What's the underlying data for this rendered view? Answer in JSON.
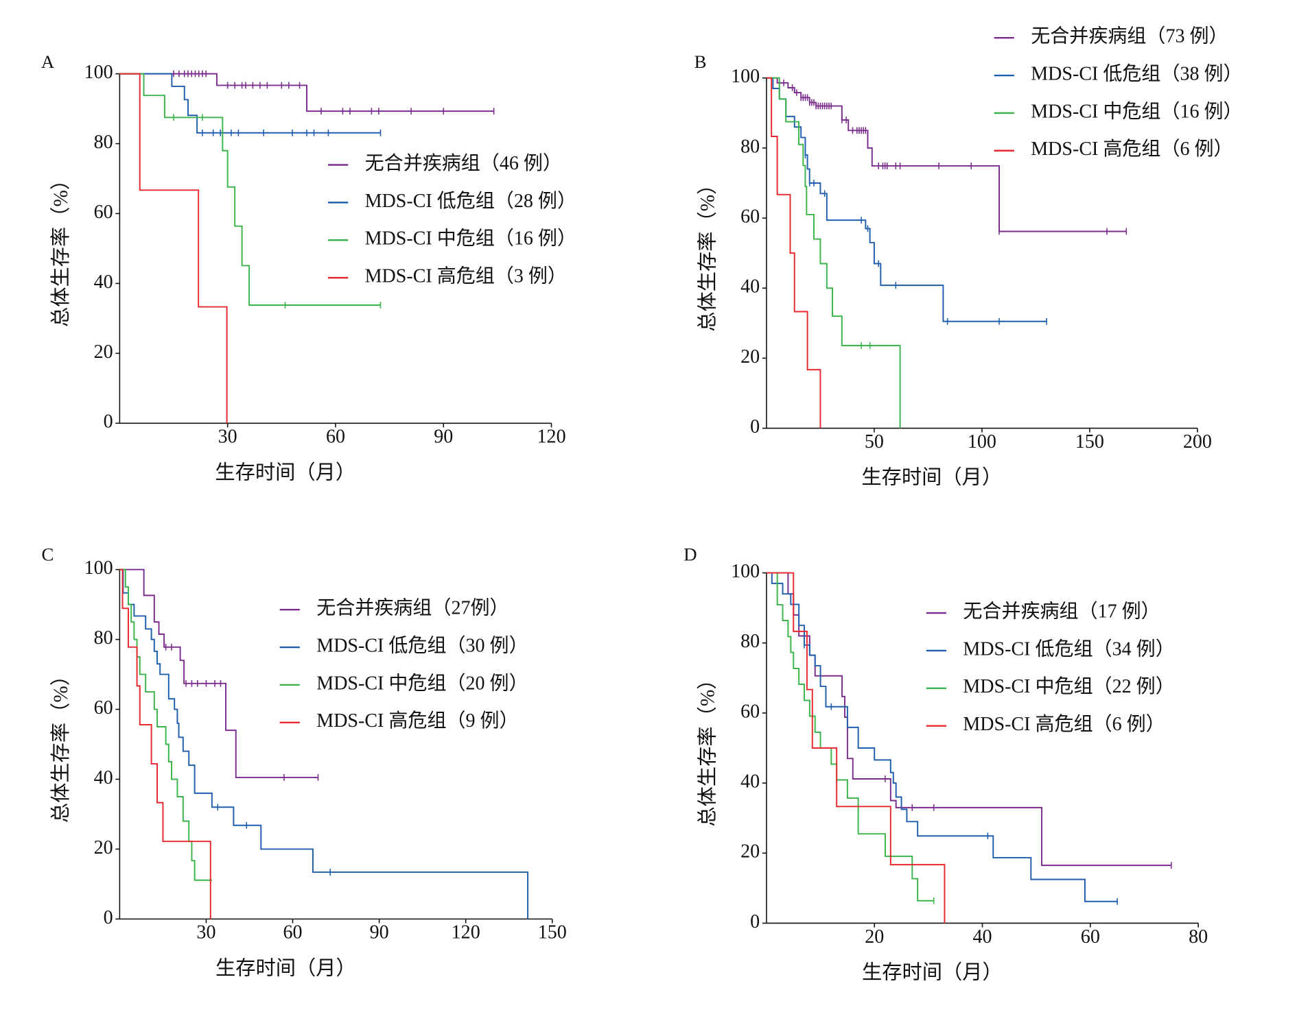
{
  "chart_data": [
    {
      "type": "step",
      "label": "A",
      "x_label": "生存时间（月）",
      "y_label": "总体生存率（%）",
      "xlim": [
        0,
        120
      ],
      "xticks": [
        30,
        60,
        90,
        120
      ],
      "ylim": [
        0,
        100
      ],
      "yticks": [
        0,
        20,
        40,
        60,
        80,
        100
      ],
      "legend": "right",
      "series": [
        {
          "name": "无合并疾病组（46 例）",
          "color": "#7b2d8e",
          "x": [
            0,
            27,
            52,
            104
          ],
          "values": [
            100,
            96.7,
            89.3,
            89.3
          ],
          "censored": [
            15,
            16.5,
            18,
            19,
            20,
            21,
            22,
            23,
            24,
            30,
            32,
            34,
            35,
            37,
            39,
            41,
            45,
            47,
            50,
            56,
            62,
            64,
            70,
            72,
            81,
            90,
            104
          ]
        },
        {
          "name": "MDS-CI 低危组（28 例）",
          "color": "#1f5fae",
          "x": [
            0,
            14.5,
            18,
            19,
            21.5,
            72.5
          ],
          "values": [
            100,
            96.4,
            92.6,
            88.1,
            83.1,
            83.1
          ],
          "censored": [
            23,
            26,
            28,
            31,
            33,
            40,
            48,
            52,
            54,
            58,
            72.5
          ]
        },
        {
          "name": "MDS-CI 中危组（16 例）",
          "color": "#3cb44b",
          "x": [
            0,
            6.7,
            12.5,
            28.6,
            30,
            32,
            34,
            36,
            72.5
          ],
          "values": [
            100,
            93.8,
            87.5,
            78,
            67.6,
            56.4,
            45.1,
            33.8,
            33.8
          ],
          "censored": [
            15,
            23,
            46,
            72.5
          ]
        },
        {
          "name": "MDS-CI 高危组（3 例）",
          "color": "#e8282d",
          "x": [
            0,
            5.6,
            21.9,
            29.8
          ],
          "values": [
            100,
            66.7,
            33.3,
            0
          ],
          "censored": []
        }
      ]
    },
    {
      "type": "step",
      "label": "B",
      "x_label": "生存时间（月）",
      "y_label": "总体生存率（%）",
      "xlim": [
        0,
        200
      ],
      "xticks": [
        50,
        100,
        150,
        200
      ],
      "ylim": [
        0,
        100
      ],
      "yticks": [
        0,
        20,
        40,
        60,
        80,
        100
      ],
      "legend": "top",
      "series": [
        {
          "name": "无合并疾病组（73 例）",
          "color": "#7b2d8e",
          "x": [
            0,
            5,
            10,
            13,
            16,
            20,
            23,
            35,
            38,
            47,
            49,
            108,
            167
          ],
          "values": [
            100,
            98.6,
            97.2,
            95.8,
            94.4,
            93,
            92,
            88,
            85,
            80,
            74.9,
            56.2,
            56.2
          ],
          "censored": [
            8,
            12,
            14,
            16,
            17,
            18,
            19,
            20,
            21,
            22,
            23,
            24,
            25,
            26,
            27,
            28,
            29,
            30,
            35,
            37,
            40,
            42,
            43,
            44,
            45,
            46,
            52,
            54,
            55,
            56,
            60,
            62,
            80,
            95,
            108,
            158,
            167
          ]
        },
        {
          "name": "MDS-CI 低危组（38 例）",
          "color": "#1f5fae",
          "x": [
            0,
            3,
            6,
            9,
            13,
            16,
            18,
            19,
            20,
            25,
            28,
            46,
            48,
            50,
            53,
            82,
            130
          ],
          "values": [
            100,
            97,
            94,
            89,
            86,
            83,
            78,
            74,
            70,
            67,
            59.4,
            57,
            53,
            47,
            40.8,
            30.5,
            30.5
          ],
          "censored": [
            15,
            18,
            20,
            22,
            27,
            44,
            47,
            52,
            60,
            84,
            108,
            130
          ]
        },
        {
          "name": "MDS-CI 中危组（16 例）",
          "color": "#3cb44b",
          "x": [
            0,
            6,
            9,
            15,
            17,
            18,
            18.6,
            22,
            25,
            28,
            30.6,
            35,
            62
          ],
          "values": [
            100,
            94,
            87.5,
            81,
            75,
            69,
            61,
            54,
            47,
            40,
            32,
            23.6,
            0
          ],
          "censored": [
            44,
            48
          ]
        },
        {
          "name": "MDS-CI 高危组（6 例）",
          "color": "#e8282d",
          "x": [
            0,
            2.3,
            5,
            11,
            13,
            19,
            25
          ],
          "values": [
            100,
            83.3,
            66.7,
            50,
            33.3,
            16.7,
            0
          ],
          "censored": []
        }
      ]
    },
    {
      "type": "step",
      "label": "C",
      "x_label": "生存时间（月）",
      "y_label": "总体生存率（%）",
      "xlim": [
        0,
        150
      ],
      "xticks": [
        30,
        60,
        90,
        120,
        150
      ],
      "ylim": [
        0,
        100
      ],
      "yticks": [
        0,
        20,
        40,
        60,
        80,
        100
      ],
      "legend": "upper right",
      "series": [
        {
          "name": "无合并疾病组（27例）",
          "color": "#7b2d8e",
          "x": [
            0,
            8.4,
            12,
            13.6,
            15.4,
            21,
            22.3,
            36.8,
            40.3,
            68.8
          ],
          "values": [
            100,
            92.6,
            85,
            81.5,
            77.8,
            74,
            67.4,
            54,
            40.5,
            40.5
          ],
          "censored": [
            16,
            18,
            23,
            25,
            27,
            30,
            33,
            35,
            57,
            68.8
          ]
        },
        {
          "name": "MDS-CI 低危组（30 例）",
          "color": "#1f5fae",
          "x": [
            0,
            1.2,
            3,
            5,
            9,
            11,
            12,
            13,
            14,
            17,
            19,
            20,
            20.5,
            22,
            24,
            26,
            32,
            39.5,
            49,
            67,
            141.5
          ],
          "values": [
            100,
            93.3,
            90,
            86.7,
            83,
            80,
            76.6,
            73,
            70,
            63,
            60,
            56,
            52,
            48,
            44,
            36,
            32,
            26.8,
            20,
            13.4,
            0
          ],
          "censored": [
            34,
            44,
            73
          ]
        },
        {
          "name": "MDS-CI 中危组（20 例）",
          "color": "#3cb44b",
          "x": [
            0,
            2,
            3,
            4,
            5,
            6,
            7,
            9,
            12,
            13,
            16,
            17,
            18,
            20,
            22,
            24,
            25,
            26,
            32
          ],
          "values": [
            100,
            95,
            90,
            85,
            80,
            75,
            70,
            65,
            60,
            55,
            50,
            45,
            40,
            35,
            28,
            22.2,
            16.7,
            11.1,
            11.1
          ],
          "censored": [
            31.5
          ]
        },
        {
          "name": "MDS-CI 高危组（9 例）",
          "color": "#e8282d",
          "x": [
            0,
            1,
            3,
            6,
            7,
            11,
            13,
            15,
            31.5
          ],
          "values": [
            100,
            88.9,
            77.8,
            66.7,
            55.6,
            44.4,
            33.3,
            22.2,
            0
          ],
          "censored": []
        }
      ]
    },
    {
      "type": "step",
      "label": "D",
      "x_label": "生存时间（月）",
      "y_label": "总体生存率（%）",
      "xlim": [
        0,
        80
      ],
      "xticks": [
        20,
        40,
        60,
        80
      ],
      "ylim": [
        0,
        100
      ],
      "yticks": [
        0,
        20,
        40,
        60,
        80,
        100
      ],
      "legend": "upper right",
      "series": [
        {
          "name": "无合并疾病组（17 例）",
          "color": "#7b2d8e",
          "x": [
            0,
            4,
            5,
            6,
            8,
            9,
            14,
            14.5,
            15,
            16,
            23,
            24,
            51,
            75
          ],
          "values": [
            100,
            94,
            88,
            82,
            76.5,
            70.6,
            64.7,
            58.8,
            47,
            41.2,
            35,
            33,
            16.5,
            16.5
          ],
          "censored": [
            22,
            27,
            31,
            75
          ]
        },
        {
          "name": "MDS-CI 低危组（34 例）",
          "color": "#1f5fae",
          "x": [
            0,
            1,
            3,
            4.5,
            6,
            7,
            8,
            9,
            10,
            11,
            15,
            17,
            20,
            23,
            23.5,
            24,
            25,
            26,
            28,
            42,
            49,
            59,
            65
          ],
          "values": [
            100,
            97,
            94,
            91,
            85,
            79.4,
            76.5,
            73.5,
            67.6,
            61.8,
            55.9,
            50,
            46.6,
            43,
            40,
            36,
            32.5,
            29,
            24.9,
            18.7,
            12.5,
            6.2,
            6.2
          ],
          "censored": [
            5,
            7,
            12,
            41,
            65
          ]
        },
        {
          "name": "MDS-CI 中危组（22 例）",
          "color": "#3cb44b",
          "x": [
            0,
            2,
            3,
            4,
            4.5,
            5,
            6,
            7,
            8,
            9,
            10,
            12,
            13,
            15,
            17,
            22,
            27,
            28,
            31
          ],
          "values": [
            100,
            90.9,
            86.4,
            81.8,
            77.3,
            72.7,
            68.2,
            63.6,
            59.1,
            54.5,
            50,
            45.4,
            40.9,
            35.7,
            25.5,
            19.1,
            12.7,
            6.4,
            6.4
          ],
          "censored": [
            13,
            31
          ]
        },
        {
          "name": "MDS-CI 高危组（6 例）",
          "color": "#e8282d",
          "x": [
            0,
            5,
            7.5,
            8.5,
            13,
            23,
            33
          ],
          "values": [
            100,
            83.3,
            66.7,
            50,
            33.3,
            16.7,
            0
          ],
          "censored": []
        }
      ]
    }
  ]
}
